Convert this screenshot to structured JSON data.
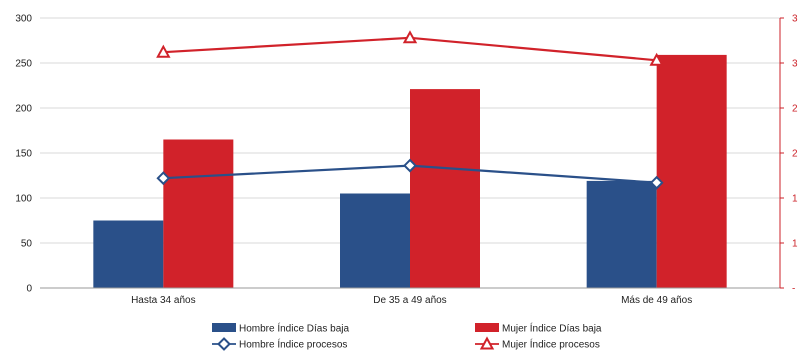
{
  "chart_data": {
    "type": "bar",
    "categories": [
      "Hasta 34 años",
      "De 35 a 49 años",
      "Más de 49 años"
    ],
    "left_axis": {
      "ylim": [
        0,
        300
      ],
      "ticks": [
        "0",
        "50",
        "100",
        "150",
        "200",
        "250",
        "300"
      ]
    },
    "right_axis": {
      "ylim": [
        0,
        3
      ],
      "ticks": [
        "-",
        "1",
        "1",
        "2",
        "2",
        "3",
        "3"
      ],
      "color": "#cc2229"
    },
    "grid": true,
    "legend_position": "bottom",
    "series": [
      {
        "name": "Hombre Índice Días baja",
        "type": "bar",
        "axis": "left",
        "color": "#2a5089",
        "values": [
          75,
          105,
          119
        ]
      },
      {
        "name": "Mujer Índice Días baja",
        "type": "bar",
        "axis": "left",
        "color": "#d1222a",
        "values": [
          165,
          221,
          259
        ]
      },
      {
        "name": "Hombre Índice procesos",
        "type": "line",
        "marker": "diamond",
        "axis": "right",
        "color": "#2a5089",
        "values": [
          1.22,
          1.36,
          1.17
        ]
      },
      {
        "name": "Mujer Índice procesos",
        "type": "line",
        "marker": "triangle",
        "axis": "right",
        "color": "#d1222a",
        "values": [
          2.62,
          2.78,
          2.53
        ]
      }
    ]
  }
}
